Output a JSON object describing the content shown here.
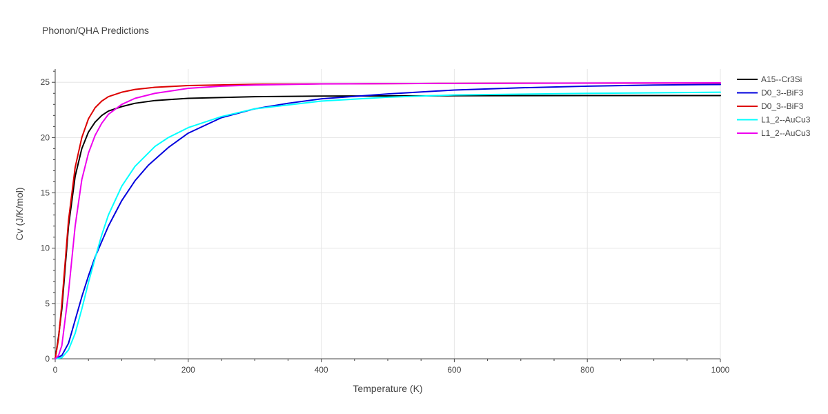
{
  "chart_data": {
    "type": "line",
    "title": "Phonon/QHA Predictions",
    "xlabel": "Temperature (K)",
    "ylabel": "Cv (J/K/mol)",
    "xlim": [
      0,
      1000
    ],
    "ylim": [
      0,
      26.2
    ],
    "x_ticks": [
      0,
      200,
      400,
      600,
      800,
      1000
    ],
    "y_ticks": [
      0,
      5,
      10,
      15,
      20,
      25
    ],
    "grid": true,
    "legend_position": "top-right",
    "series": [
      {
        "name": "A15--Cr3Si",
        "color": "#000000",
        "points": [
          [
            0,
            0
          ],
          [
            5,
            2.0
          ],
          [
            10,
            4.5
          ],
          [
            20,
            12.0
          ],
          [
            30,
            16.5
          ],
          [
            40,
            19.0
          ],
          [
            50,
            20.5
          ],
          [
            60,
            21.4
          ],
          [
            70,
            22.0
          ],
          [
            80,
            22.4
          ],
          [
            100,
            22.8
          ],
          [
            120,
            23.1
          ],
          [
            150,
            23.35
          ],
          [
            200,
            23.55
          ],
          [
            300,
            23.7
          ],
          [
            400,
            23.75
          ],
          [
            600,
            23.78
          ],
          [
            800,
            23.8
          ],
          [
            1000,
            23.8
          ]
        ]
      },
      {
        "name": "D0_3--BiF3",
        "color": "#0000dd",
        "points": [
          [
            0,
            0
          ],
          [
            10,
            0.3
          ],
          [
            20,
            1.4
          ],
          [
            30,
            3.5
          ],
          [
            40,
            5.6
          ],
          [
            50,
            7.5
          ],
          [
            60,
            9.2
          ],
          [
            80,
            12.0
          ],
          [
            100,
            14.3
          ],
          [
            120,
            16.1
          ],
          [
            140,
            17.5
          ],
          [
            170,
            19.1
          ],
          [
            200,
            20.4
          ],
          [
            250,
            21.8
          ],
          [
            300,
            22.6
          ],
          [
            350,
            23.1
          ],
          [
            400,
            23.5
          ],
          [
            500,
            23.95
          ],
          [
            600,
            24.3
          ],
          [
            700,
            24.5
          ],
          [
            800,
            24.65
          ],
          [
            900,
            24.75
          ],
          [
            1000,
            24.8
          ]
        ]
      },
      {
        "name": "D0_3--BiF3",
        "color": "#dd0000",
        "points": [
          [
            0,
            0
          ],
          [
            5,
            1.8
          ],
          [
            10,
            5.0
          ],
          [
            20,
            12.5
          ],
          [
            30,
            17.3
          ],
          [
            40,
            20.0
          ],
          [
            50,
            21.7
          ],
          [
            60,
            22.7
          ],
          [
            70,
            23.3
          ],
          [
            80,
            23.7
          ],
          [
            100,
            24.1
          ],
          [
            120,
            24.35
          ],
          [
            150,
            24.55
          ],
          [
            200,
            24.7
          ],
          [
            300,
            24.82
          ],
          [
            400,
            24.86
          ],
          [
            600,
            24.9
          ],
          [
            800,
            24.92
          ],
          [
            1000,
            24.93
          ]
        ]
      },
      {
        "name": "L1_2--AuCu3",
        "color": "#00ffff",
        "points": [
          [
            0,
            0
          ],
          [
            10,
            0.1
          ],
          [
            20,
            0.8
          ],
          [
            30,
            2.3
          ],
          [
            40,
            4.5
          ],
          [
            50,
            6.9
          ],
          [
            60,
            9.1
          ],
          [
            70,
            11.2
          ],
          [
            80,
            13.0
          ],
          [
            100,
            15.6
          ],
          [
            120,
            17.4
          ],
          [
            150,
            19.2
          ],
          [
            170,
            20.0
          ],
          [
            200,
            20.9
          ],
          [
            250,
            21.9
          ],
          [
            300,
            22.6
          ],
          [
            400,
            23.3
          ],
          [
            500,
            23.65
          ],
          [
            600,
            23.85
          ],
          [
            800,
            24.0
          ],
          [
            1000,
            24.1
          ]
        ]
      },
      {
        "name": "L1_2--AuCu3",
        "color": "#ee00ee",
        "points": [
          [
            0,
            0
          ],
          [
            5,
            0.3
          ],
          [
            10,
            1.2
          ],
          [
            20,
            6.0
          ],
          [
            30,
            12.0
          ],
          [
            40,
            16.2
          ],
          [
            50,
            18.6
          ],
          [
            60,
            20.2
          ],
          [
            70,
            21.3
          ],
          [
            80,
            22.1
          ],
          [
            100,
            23.0
          ],
          [
            120,
            23.55
          ],
          [
            150,
            24.0
          ],
          [
            200,
            24.45
          ],
          [
            250,
            24.65
          ],
          [
            300,
            24.75
          ],
          [
            400,
            24.85
          ],
          [
            600,
            24.9
          ],
          [
            800,
            24.93
          ],
          [
            1000,
            24.95
          ]
        ]
      }
    ]
  }
}
